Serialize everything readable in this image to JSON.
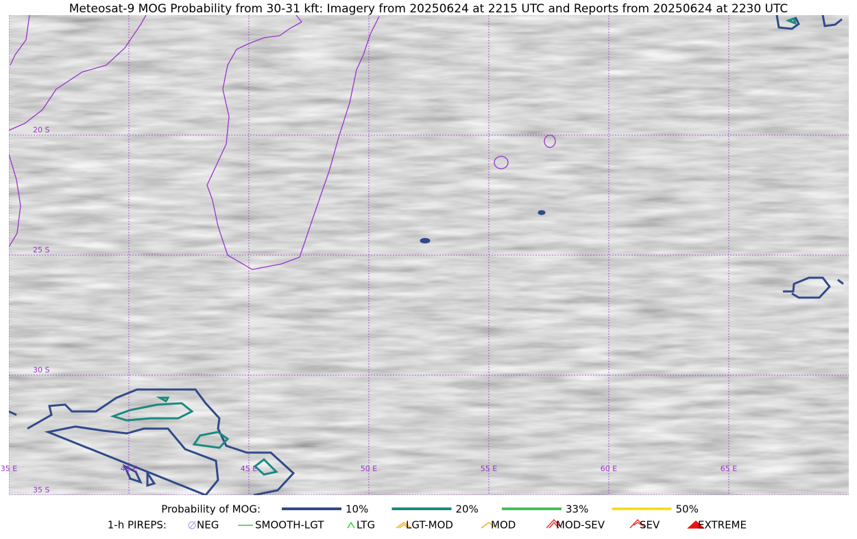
{
  "title": "Meteosat-9 MOG Probability from 30-31 kft: Imagery from 20250624 at 2215 UTC and Reports from 20250624 at 2230 UTC",
  "map": {
    "xlim": [
      35,
      70
    ],
    "ylim": [
      -35,
      -15
    ],
    "xticks": [
      {
        "value": 35,
        "label": "35 E"
      },
      {
        "value": 40,
        "label": "40 E"
      },
      {
        "value": 45,
        "label": "45 E"
      },
      {
        "value": 50,
        "label": "50 E"
      },
      {
        "value": 55,
        "label": "55 E"
      },
      {
        "value": 60,
        "label": "60 E"
      },
      {
        "value": 65,
        "label": "65 E"
      }
    ],
    "yticks": [
      {
        "value": -20,
        "label": "20 S"
      },
      {
        "value": -25,
        "label": "25 S"
      },
      {
        "value": -30,
        "label": "30 S"
      },
      {
        "value": -35,
        "label": "35 S"
      }
    ],
    "grid_color": "#9933cc"
  },
  "legend": {
    "mog_title": "Probability of MOG:",
    "mog": [
      {
        "label": "10%",
        "color": "#2f4a8a"
      },
      {
        "label": "20%",
        "color": "#1a8a80"
      },
      {
        "label": "33%",
        "color": "#44c05a"
      },
      {
        "label": "50%",
        "color": "#f5e020"
      }
    ],
    "pirep_title": "1-h PIREPS:",
    "pireps": [
      {
        "label": "NEG",
        "color": "#b8b8f0"
      },
      {
        "label": "SMOOTH-LGT",
        "color": "#33cc33"
      },
      {
        "label": "LTG",
        "color": "#22dd22"
      },
      {
        "label": "LGT-MOD",
        "color": "#f0b020"
      },
      {
        "label": "MOD",
        "color": "#f0b020"
      },
      {
        "label": "MOD-SEV",
        "color": "#ee3333"
      },
      {
        "label": "SEV",
        "color": "#ee3333"
      },
      {
        "label": "EXTREME",
        "color": "#ee1111"
      }
    ]
  }
}
